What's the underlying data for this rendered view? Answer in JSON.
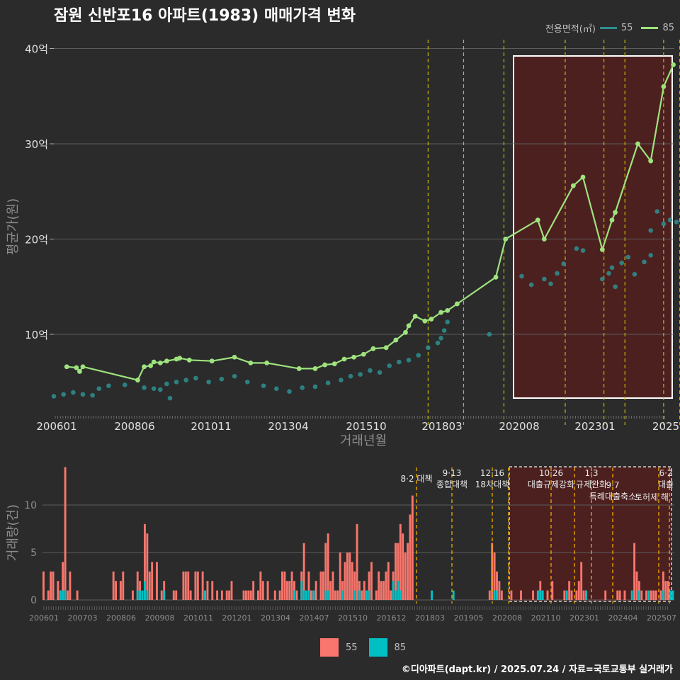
{
  "title": "잠원 신반포16 아파트(1983) 매매가격 변화",
  "legend_top": {
    "label": "전용면적(㎡)",
    "items": [
      "55",
      "85"
    ]
  },
  "legend_bottom": {
    "items": [
      "55",
      "85"
    ]
  },
  "footer": "©디아파트(dapt.kr) / 2025.07.24 / 자료=국토교통부 실거래가",
  "colors": {
    "s55_line": "#2f8f8f",
    "s85_line": "#9ee37d",
    "s55_bar": "#f8766d",
    "s85_bar": "#00bfc4",
    "highlight": "#5a1d1d",
    "policy": "#c8b400"
  },
  "chart_data": [
    {
      "type": "line",
      "ylabel": "평균가(원)",
      "xlabel": "거래년월",
      "y_ticks": [
        "10억",
        "20억",
        "30억",
        "40억"
      ],
      "y_tick_values": [
        10,
        20,
        30,
        40
      ],
      "x_ticks": [
        "200601",
        "200806",
        "201011",
        "201304",
        "201510",
        "201803",
        "202008",
        "202301",
        "2025"
      ],
      "ylim": [
        2,
        41
      ],
      "series": [
        {
          "name": "55",
          "style": "points",
          "points": [
            [
              "2006.0",
              3.5
            ],
            [
              "2006.3",
              3.7
            ],
            [
              "2006.6",
              3.9
            ],
            [
              "2006.9",
              3.7
            ],
            [
              "2007.2",
              3.6
            ],
            [
              "2007.4",
              4.3
            ],
            [
              "2007.7",
              4.6
            ],
            [
              "2008.2",
              4.7
            ],
            [
              "2008.8",
              4.4
            ],
            [
              "2009.1",
              4.3
            ],
            [
              "2009.3",
              4.2
            ],
            [
              "2009.5",
              4.8
            ],
            [
              "2009.6",
              3.3
            ],
            [
              "2009.8",
              5.0
            ],
            [
              "2010.1",
              5.2
            ],
            [
              "2010.4",
              5.4
            ],
            [
              "2010.8",
              5.0
            ],
            [
              "2011.2",
              5.3
            ],
            [
              "2011.6",
              5.6
            ],
            [
              "2012.0",
              5.0
            ],
            [
              "2012.5",
              4.6
            ],
            [
              "2012.9",
              4.3
            ],
            [
              "2013.3",
              4.0
            ],
            [
              "2013.7",
              4.4
            ],
            [
              "2014.1",
              4.5
            ],
            [
              "2014.5",
              4.9
            ],
            [
              "2014.9",
              5.2
            ],
            [
              "2015.2",
              5.6
            ],
            [
              "2015.5",
              5.8
            ],
            [
              "2015.8",
              6.2
            ],
            [
              "2016.1",
              6.0
            ],
            [
              "2016.4",
              6.7
            ],
            [
              "2016.7",
              7.1
            ],
            [
              "2017.0",
              7.3
            ],
            [
              "2017.3",
              7.8
            ],
            [
              "2017.6",
              8.6
            ],
            [
              "2017.9",
              9.1
            ],
            [
              "2018.0",
              9.6
            ],
            [
              "2018.1",
              10.4
            ],
            [
              "2018.2",
              11.3
            ],
            [
              "2019.5",
              10.0
            ],
            [
              "2020.5",
              16.1
            ],
            [
              "2020.8",
              15.2
            ],
            [
              "2021.2",
              15.8
            ],
            [
              "2021.4",
              15.3
            ],
            [
              "2021.6",
              16.4
            ],
            [
              "2021.8",
              17.4
            ],
            [
              "2022.2",
              19.0
            ],
            [
              "2022.4",
              18.8
            ],
            [
              "2023.0",
              15.8
            ],
            [
              "2023.2",
              16.4
            ],
            [
              "2023.3",
              17.0
            ],
            [
              "2023.4",
              15.0
            ],
            [
              "2023.6",
              17.5
            ],
            [
              "2023.8",
              18.1
            ],
            [
              "2024.0",
              16.3
            ],
            [
              "2024.3",
              17.6
            ],
            [
              "2024.5",
              18.3
            ],
            [
              "2024.5",
              20.9
            ],
            [
              "2024.7",
              22.9
            ],
            [
              "2024.9",
              21.6
            ],
            [
              "2025.1",
              22.0
            ],
            [
              "2025.3",
              21.8
            ],
            [
              "2025.5",
              23.0
            ]
          ]
        },
        {
          "name": "85",
          "style": "line",
          "points": [
            [
              "2006.4",
              6.6
            ],
            [
              "2006.7",
              6.5
            ],
            [
              "2006.8",
              6.1
            ],
            [
              "2006.9",
              6.6
            ],
            [
              "2008.6",
              5.2
            ],
            [
              "2008.8",
              6.6
            ],
            [
              "2009.0",
              6.7
            ],
            [
              "2009.1",
              7.1
            ],
            [
              "2009.3",
              7.0
            ],
            [
              "2009.5",
              7.2
            ],
            [
              "2009.8",
              7.4
            ],
            [
              "2009.9",
              7.5
            ],
            [
              "2010.2",
              7.3
            ],
            [
              "2010.9",
              7.2
            ],
            [
              "2011.6",
              7.6
            ],
            [
              "2012.1",
              7.0
            ],
            [
              "2012.6",
              7.0
            ],
            [
              "2013.6",
              6.4
            ],
            [
              "2014.1",
              6.4
            ],
            [
              "2014.4",
              6.8
            ],
            [
              "2014.7",
              6.9
            ],
            [
              "2015.0",
              7.4
            ],
            [
              "2015.3",
              7.6
            ],
            [
              "2015.6",
              7.9
            ],
            [
              "2015.9",
              8.5
            ],
            [
              "2016.3",
              8.6
            ],
            [
              "2016.6",
              9.4
            ],
            [
              "2016.9",
              10.2
            ],
            [
              "2017.0",
              10.9
            ],
            [
              "2017.2",
              11.9
            ],
            [
              "2017.5",
              11.4
            ],
            [
              "2017.7",
              11.6
            ],
            [
              "2018.0",
              12.3
            ],
            [
              "2018.2",
              12.5
            ],
            [
              "2018.5",
              13.2
            ],
            [
              "2019.7",
              16.0
            ],
            [
              "2020.0",
              20.0
            ],
            [
              "2021.0",
              22.0
            ],
            [
              "2021.2",
              20.0
            ],
            [
              "2022.1",
              25.6
            ],
            [
              "2022.4",
              26.5
            ],
            [
              "2023.0",
              18.9
            ],
            [
              "2023.3",
              22.0
            ],
            [
              "2023.4",
              22.8
            ],
            [
              "2024.1",
              30.0
            ],
            [
              "2024.5",
              28.2
            ],
            [
              "2024.9",
              36.0
            ],
            [
              "2025.2",
              38.3
            ]
          ]
        }
      ],
      "policy_markers": [
        "2017.6",
        "2018.7",
        "2019.95",
        "2021.85",
        "2023.05",
        "2023.7",
        "2024.9",
        "2025.4"
      ]
    },
    {
      "type": "bar",
      "ylabel": "거래량(건)",
      "y_ticks": [
        "0",
        "5",
        "10"
      ],
      "y_tick_values": [
        0,
        5,
        10
      ],
      "x_ticks": [
        "200601",
        "200703",
        "200806",
        "200908",
        "201011",
        "201201",
        "201304",
        "201407",
        "201510",
        "201612",
        "201803",
        "201905",
        "202008",
        "202110",
        "202301",
        "202404",
        "202507"
      ],
      "annotations": [
        {
          "date": "201708",
          "lines": [
            "8·2 대책"
          ]
        },
        {
          "date": "201809",
          "lines": [
            "9·13",
            "종합대책"
          ]
        },
        {
          "date": "201912",
          "lines": [
            "12·16",
            "18차대책"
          ]
        },
        {
          "date": "202110",
          "lines": [
            "10·26",
            "대출규제강화"
          ]
        },
        {
          "date": "202301",
          "lines": [
            "1·3",
            "규제완화"
          ]
        },
        {
          "date": "202309",
          "lines": [
            "9·7",
            "특례대출축소"
          ]
        },
        {
          "date": "202402",
          "lines": [
            "토허제 해"
          ]
        },
        {
          "date": "202506",
          "lines": [
            "6·2",
            "대출"
          ]
        }
      ],
      "series": [
        {
          "name": "55",
          "values": [
            3,
            0,
            1,
            3,
            3,
            0,
            2,
            1,
            4,
            14,
            1,
            3,
            0,
            0,
            1,
            0,
            0,
            0,
            0,
            0,
            0,
            0,
            0,
            0,
            0,
            0,
            0,
            0,
            0,
            3,
            2,
            0,
            2,
            3,
            0,
            0,
            0,
            1,
            0,
            3,
            2,
            0,
            8,
            7,
            3,
            4,
            0,
            4,
            0,
            1,
            2,
            0,
            0,
            0,
            1,
            1,
            0,
            0,
            3,
            3,
            3,
            1,
            0,
            3,
            3,
            0,
            3,
            1,
            2,
            0,
            2,
            0,
            1,
            0,
            1,
            0,
            1,
            1,
            2,
            0,
            0,
            0,
            0,
            1,
            1,
            1,
            1,
            2,
            0,
            1,
            3,
            2,
            0,
            2,
            0,
            0,
            1,
            0,
            1,
            3,
            3,
            2,
            2,
            3,
            2,
            1,
            0,
            3,
            6,
            1,
            3,
            1,
            1,
            2,
            0,
            3,
            3,
            6,
            7,
            2,
            3,
            1,
            1,
            5,
            2,
            4,
            5,
            5,
            4,
            3,
            8,
            2,
            1,
            2,
            1,
            3,
            4,
            0,
            1,
            3,
            2,
            2,
            3,
            4,
            1,
            3,
            6,
            6,
            8,
            7,
            5,
            6,
            9,
            11,
            0,
            0,
            0,
            0,
            0,
            0,
            0,
            0,
            0,
            0,
            0,
            0,
            0,
            0,
            0,
            0,
            0,
            0,
            0,
            0,
            0,
            0,
            0,
            0,
            0,
            0,
            0,
            0,
            0,
            0,
            0,
            1,
            6,
            5,
            3,
            2,
            1,
            0,
            0,
            0,
            1,
            0,
            0,
            0,
            1,
            0,
            0,
            0,
            0,
            1,
            0,
            1,
            2,
            0,
            0,
            1,
            0,
            2,
            0,
            0,
            0,
            0,
            1,
            0,
            2,
            1,
            0,
            1,
            2,
            4,
            1,
            1,
            0,
            0,
            0,
            0,
            0,
            0,
            0,
            1,
            0,
            0,
            0,
            0,
            1,
            1,
            0,
            1,
            0,
            0,
            0,
            6,
            3,
            2,
            1,
            0,
            1,
            0,
            1,
            1,
            1,
            0,
            1,
            3,
            2,
            2,
            1,
            1
          ]
        },
        {
          "name": "85",
          "values": [
            0,
            0,
            0,
            0,
            0,
            0,
            0,
            1,
            1,
            1,
            0,
            0,
            0,
            0,
            0,
            0,
            0,
            0,
            0,
            0,
            0,
            0,
            0,
            0,
            0,
            0,
            0,
            0,
            0,
            0,
            0,
            0,
            0,
            0,
            0,
            0,
            0,
            0,
            0,
            1,
            1,
            1,
            2,
            1,
            0,
            0,
            0,
            0,
            0,
            0,
            1,
            0,
            0,
            0,
            0,
            0,
            0,
            0,
            0,
            0,
            0,
            0,
            0,
            0,
            0,
            0,
            0,
            1,
            0,
            0,
            0,
            0,
            0,
            0,
            0,
            0,
            0,
            0,
            0,
            0,
            0,
            0,
            0,
            0,
            0,
            0,
            0,
            0,
            0,
            0,
            0,
            0,
            0,
            0,
            0,
            0,
            0,
            0,
            0,
            0,
            0,
            0,
            0,
            0,
            1,
            0,
            0,
            2,
            1,
            1,
            1,
            0,
            1,
            0,
            0,
            0,
            0,
            1,
            1,
            0,
            0,
            0,
            0,
            0,
            1,
            0,
            0,
            0,
            0,
            1,
            0,
            1,
            0,
            0,
            1,
            1,
            0,
            0,
            0,
            0,
            0,
            0,
            0,
            0,
            0,
            2,
            1,
            2,
            1,
            0,
            0,
            0,
            0,
            0,
            0,
            0,
            0,
            0,
            0,
            0,
            0,
            1,
            0,
            0,
            0,
            0,
            0,
            0,
            0,
            0,
            1,
            0,
            0,
            0,
            0,
            0,
            0,
            0,
            0,
            0,
            0,
            0,
            0,
            0,
            0,
            0,
            0,
            1,
            1,
            0,
            0,
            0,
            0,
            0,
            0,
            0,
            0,
            0,
            0,
            0,
            0,
            0,
            0,
            0,
            0,
            1,
            1,
            1,
            0,
            0,
            0,
            0,
            0,
            0,
            0,
            0,
            0,
            1,
            0,
            0,
            0,
            0,
            0,
            0,
            0,
            1,
            0,
            0,
            0,
            0,
            0,
            0,
            0,
            0,
            0,
            0,
            0,
            0,
            0,
            0,
            0,
            0,
            0,
            0,
            1,
            0,
            0,
            1,
            0,
            0,
            0,
            1,
            0,
            0,
            0,
            0,
            0,
            1,
            0,
            0,
            1,
            1
          ]
        }
      ]
    }
  ]
}
